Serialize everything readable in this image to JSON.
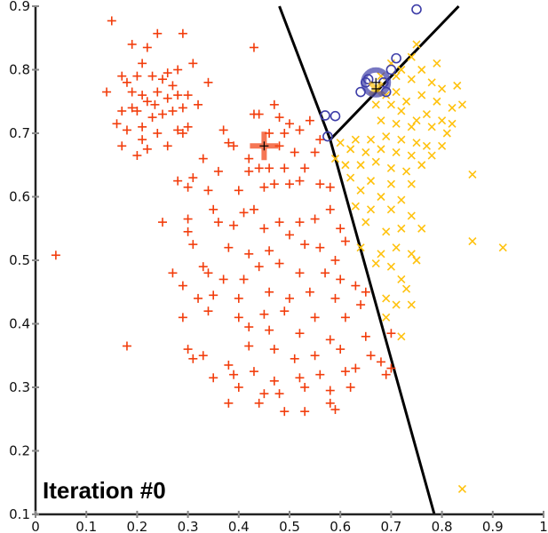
{
  "chart_data": {
    "type": "scatter",
    "title": "Iteration #0",
    "xlabel": "",
    "ylabel": "",
    "xlim": [
      0,
      1
    ],
    "ylim": [
      0.1,
      0.9
    ],
    "x_ticks": [
      "0",
      "0.1",
      "0.2",
      "0.3",
      "0.4",
      "0.5",
      "0.6",
      "0.7",
      "0.8",
      "0.9",
      "1"
    ],
    "y_ticks": [
      "0.1",
      "0.2",
      "0.3",
      "0.4",
      "0.5",
      "0.6",
      "0.7",
      "0.8",
      "0.9"
    ],
    "grid": false,
    "legend": "none",
    "colors": {
      "red": "#f23d0c",
      "yellow": "#ffc20e",
      "blue": "#3e3ea8",
      "axis": "#222222",
      "tick": "#888888"
    },
    "series": [
      {
        "marker": "plus",
        "color": "#f23d0c",
        "points": [
          [
            0.15,
            0.877
          ],
          [
            0.19,
            0.84
          ],
          [
            0.24,
            0.857
          ],
          [
            0.22,
            0.835
          ],
          [
            0.21,
            0.81
          ],
          [
            0.29,
            0.857
          ],
          [
            0.28,
            0.8
          ],
          [
            0.26,
            0.795
          ],
          [
            0.17,
            0.79
          ],
          [
            0.18,
            0.78
          ],
          [
            0.2,
            0.79
          ],
          [
            0.23,
            0.79
          ],
          [
            0.25,
            0.785
          ],
          [
            0.27,
            0.775
          ],
          [
            0.31,
            0.81
          ],
          [
            0.34,
            0.78
          ],
          [
            0.14,
            0.765
          ],
          [
            0.19,
            0.765
          ],
          [
            0.21,
            0.76
          ],
          [
            0.22,
            0.75
          ],
          [
            0.24,
            0.765
          ],
          [
            0.26,
            0.755
          ],
          [
            0.28,
            0.76
          ],
          [
            0.3,
            0.76
          ],
          [
            0.19,
            0.74
          ],
          [
            0.2,
            0.735
          ],
          [
            0.23,
            0.725
          ],
          [
            0.25,
            0.73
          ],
          [
            0.27,
            0.735
          ],
          [
            0.29,
            0.74
          ],
          [
            0.17,
            0.735
          ],
          [
            0.16,
            0.715
          ],
          [
            0.18,
            0.705
          ],
          [
            0.21,
            0.71
          ],
          [
            0.24,
            0.7
          ],
          [
            0.28,
            0.705
          ],
          [
            0.17,
            0.68
          ],
          [
            0.21,
            0.69
          ],
          [
            0.22,
            0.675
          ],
          [
            0.2,
            0.665
          ],
          [
            0.3,
            0.71
          ],
          [
            0.26,
            0.68
          ],
          [
            0.29,
            0.7
          ],
          [
            0.235,
            0.745
          ],
          [
            0.32,
            0.745
          ],
          [
            0.04,
            0.508
          ],
          [
            0.18,
            0.365
          ],
          [
            0.43,
            0.835
          ],
          [
            0.47,
            0.745
          ],
          [
            0.43,
            0.73
          ],
          [
            0.44,
            0.73
          ],
          [
            0.48,
            0.725
          ],
          [
            0.5,
            0.715
          ],
          [
            0.54,
            0.72
          ],
          [
            0.46,
            0.7
          ],
          [
            0.52,
            0.705
          ],
          [
            0.49,
            0.7
          ],
          [
            0.56,
            0.69
          ],
          [
            0.37,
            0.705
          ],
          [
            0.38,
            0.685
          ],
          [
            0.39,
            0.68
          ],
          [
            0.33,
            0.66
          ],
          [
            0.36,
            0.64
          ],
          [
            0.42,
            0.64
          ],
          [
            0.48,
            0.68
          ],
          [
            0.51,
            0.67
          ],
          [
            0.55,
            0.67
          ],
          [
            0.53,
            0.645
          ],
          [
            0.49,
            0.645
          ],
          [
            0.46,
            0.645
          ],
          [
            0.44,
            0.645
          ],
          [
            0.31,
            0.63
          ],
          [
            0.3,
            0.615
          ],
          [
            0.28,
            0.625
          ],
          [
            0.34,
            0.61
          ],
          [
            0.4,
            0.61
          ],
          [
            0.45,
            0.615
          ],
          [
            0.5,
            0.62
          ],
          [
            0.52,
            0.625
          ],
          [
            0.56,
            0.62
          ],
          [
            0.58,
            0.615
          ],
          [
            0.47,
            0.62
          ],
          [
            0.43,
            0.58
          ],
          [
            0.41,
            0.575
          ],
          [
            0.3,
            0.565
          ],
          [
            0.3,
            0.545
          ],
          [
            0.36,
            0.56
          ],
          [
            0.39,
            0.555
          ],
          [
            0.45,
            0.55
          ],
          [
            0.48,
            0.56
          ],
          [
            0.52,
            0.56
          ],
          [
            0.55,
            0.565
          ],
          [
            0.58,
            0.58
          ],
          [
            0.6,
            0.55
          ],
          [
            0.61,
            0.53
          ],
          [
            0.31,
            0.525
          ],
          [
            0.38,
            0.52
          ],
          [
            0.42,
            0.51
          ],
          [
            0.46,
            0.515
          ],
          [
            0.5,
            0.54
          ],
          [
            0.53,
            0.525
          ],
          [
            0.56,
            0.52
          ],
          [
            0.59,
            0.5
          ],
          [
            0.27,
            0.48
          ],
          [
            0.33,
            0.49
          ],
          [
            0.34,
            0.48
          ],
          [
            0.37,
            0.47
          ],
          [
            0.41,
            0.47
          ],
          [
            0.44,
            0.49
          ],
          [
            0.48,
            0.495
          ],
          [
            0.52,
            0.48
          ],
          [
            0.57,
            0.48
          ],
          [
            0.6,
            0.47
          ],
          [
            0.63,
            0.46
          ],
          [
            0.65,
            0.45
          ],
          [
            0.29,
            0.46
          ],
          [
            0.32,
            0.44
          ],
          [
            0.35,
            0.445
          ],
          [
            0.4,
            0.44
          ],
          [
            0.46,
            0.45
          ],
          [
            0.5,
            0.44
          ],
          [
            0.54,
            0.45
          ],
          [
            0.59,
            0.44
          ],
          [
            0.64,
            0.43
          ],
          [
            0.29,
            0.41
          ],
          [
            0.34,
            0.42
          ],
          [
            0.4,
            0.41
          ],
          [
            0.45,
            0.415
          ],
          [
            0.49,
            0.42
          ],
          [
            0.55,
            0.41
          ],
          [
            0.61,
            0.41
          ],
          [
            0.42,
            0.395
          ],
          [
            0.46,
            0.39
          ],
          [
            0.52,
            0.385
          ],
          [
            0.58,
            0.375
          ],
          [
            0.65,
            0.38
          ],
          [
            0.7,
            0.385
          ],
          [
            0.3,
            0.36
          ],
          [
            0.33,
            0.35
          ],
          [
            0.38,
            0.335
          ],
          [
            0.42,
            0.365
          ],
          [
            0.47,
            0.36
          ],
          [
            0.51,
            0.345
          ],
          [
            0.55,
            0.35
          ],
          [
            0.6,
            0.36
          ],
          [
            0.66,
            0.35
          ],
          [
            0.68,
            0.34
          ],
          [
            0.7,
            0.33
          ],
          [
            0.31,
            0.345
          ],
          [
            0.35,
            0.315
          ],
          [
            0.39,
            0.32
          ],
          [
            0.43,
            0.325
          ],
          [
            0.47,
            0.31
          ],
          [
            0.52,
            0.315
          ],
          [
            0.56,
            0.32
          ],
          [
            0.61,
            0.325
          ],
          [
            0.63,
            0.33
          ],
          [
            0.69,
            0.32
          ],
          [
            0.4,
            0.3
          ],
          [
            0.45,
            0.29
          ],
          [
            0.48,
            0.29
          ],
          [
            0.53,
            0.3
          ],
          [
            0.58,
            0.295
          ],
          [
            0.62,
            0.3
          ],
          [
            0.38,
            0.275
          ],
          [
            0.44,
            0.275
          ],
          [
            0.49,
            0.262
          ],
          [
            0.53,
            0.262
          ],
          [
            0.58,
            0.275
          ],
          [
            0.59,
            0.265
          ],
          [
            0.42,
            0.66
          ],
          [
            0.35,
            0.58
          ],
          [
            0.25,
            0.56
          ]
        ]
      },
      {
        "marker": "x",
        "color": "#ffc20e",
        "points": [
          [
            0.75,
            0.84
          ],
          [
            0.7,
            0.81
          ],
          [
            0.74,
            0.82
          ],
          [
            0.79,
            0.81
          ],
          [
            0.72,
            0.8
          ],
          [
            0.76,
            0.8
          ],
          [
            0.68,
            0.79
          ],
          [
            0.71,
            0.79
          ],
          [
            0.74,
            0.785
          ],
          [
            0.78,
            0.78
          ],
          [
            0.8,
            0.77
          ],
          [
            0.83,
            0.775
          ],
          [
            0.69,
            0.76
          ],
          [
            0.71,
            0.765
          ],
          [
            0.73,
            0.75
          ],
          [
            0.76,
            0.76
          ],
          [
            0.79,
            0.75
          ],
          [
            0.82,
            0.74
          ],
          [
            0.84,
            0.745
          ],
          [
            0.67,
            0.745
          ],
          [
            0.7,
            0.745
          ],
          [
            0.72,
            0.735
          ],
          [
            0.75,
            0.72
          ],
          [
            0.77,
            0.73
          ],
          [
            0.8,
            0.72
          ],
          [
            0.82,
            0.715
          ],
          [
            0.68,
            0.72
          ],
          [
            0.71,
            0.715
          ],
          [
            0.74,
            0.71
          ],
          [
            0.78,
            0.71
          ],
          [
            0.81,
            0.7
          ],
          [
            0.63,
            0.69
          ],
          [
            0.66,
            0.69
          ],
          [
            0.69,
            0.695
          ],
          [
            0.72,
            0.69
          ],
          [
            0.75,
            0.685
          ],
          [
            0.77,
            0.68
          ],
          [
            0.8,
            0.68
          ],
          [
            0.6,
            0.685
          ],
          [
            0.62,
            0.675
          ],
          [
            0.65,
            0.67
          ],
          [
            0.68,
            0.675
          ],
          [
            0.71,
            0.67
          ],
          [
            0.74,
            0.665
          ],
          [
            0.78,
            0.665
          ],
          [
            0.61,
            0.65
          ],
          [
            0.64,
            0.65
          ],
          [
            0.67,
            0.655
          ],
          [
            0.7,
            0.645
          ],
          [
            0.73,
            0.64
          ],
          [
            0.76,
            0.65
          ],
          [
            0.86,
            0.635
          ],
          [
            0.62,
            0.63
          ],
          [
            0.66,
            0.625
          ],
          [
            0.7,
            0.62
          ],
          [
            0.74,
            0.62
          ],
          [
            0.64,
            0.61
          ],
          [
            0.68,
            0.6
          ],
          [
            0.72,
            0.595
          ],
          [
            0.63,
            0.585
          ],
          [
            0.66,
            0.58
          ],
          [
            0.7,
            0.58
          ],
          [
            0.74,
            0.57
          ],
          [
            0.65,
            0.56
          ],
          [
            0.69,
            0.545
          ],
          [
            0.72,
            0.55
          ],
          [
            0.76,
            0.55
          ],
          [
            0.86,
            0.53
          ],
          [
            0.92,
            0.52
          ],
          [
            0.64,
            0.52
          ],
          [
            0.68,
            0.51
          ],
          [
            0.71,
            0.52
          ],
          [
            0.74,
            0.51
          ],
          [
            0.67,
            0.495
          ],
          [
            0.7,
            0.49
          ],
          [
            0.75,
            0.5
          ],
          [
            0.72,
            0.47
          ],
          [
            0.73,
            0.455
          ],
          [
            0.69,
            0.44
          ],
          [
            0.71,
            0.43
          ],
          [
            0.74,
            0.43
          ],
          [
            0.69,
            0.41
          ],
          [
            0.72,
            0.38
          ],
          [
            0.84,
            0.14
          ],
          [
            0.59,
            0.66
          ]
        ]
      },
      {
        "marker": "circle",
        "color": "#3e3ea8",
        "points": [
          [
            0.75,
            0.895
          ],
          [
            0.71,
            0.818
          ],
          [
            0.7,
            0.8
          ],
          [
            0.65,
            0.78
          ],
          [
            0.64,
            0.765
          ],
          [
            0.655,
            0.785
          ],
          [
            0.685,
            0.78
          ],
          [
            0.69,
            0.765
          ],
          [
            0.57,
            0.728
          ],
          [
            0.59,
            0.727
          ],
          [
            0.575,
            0.695
          ]
        ]
      }
    ],
    "centroids": [
      {
        "marker": "plus",
        "color": "#f23d0c",
        "x": 0.45,
        "y": 0.68
      },
      {
        "marker": "x",
        "color": "#ffc20e",
        "x": 0.67,
        "y": 0.77
      },
      {
        "marker": "circle",
        "color": "#3e3ea8",
        "x": 0.67,
        "y": 0.78
      }
    ],
    "boundaries": [
      [
        [
          0.48,
          0.9
        ],
        [
          0.58,
          0.69
        ]
      ],
      [
        [
          0.58,
          0.69
        ],
        [
          0.785,
          0.1
        ]
      ],
      [
        [
          0.58,
          0.69
        ],
        [
          0.833,
          0.9
        ]
      ]
    ]
  }
}
